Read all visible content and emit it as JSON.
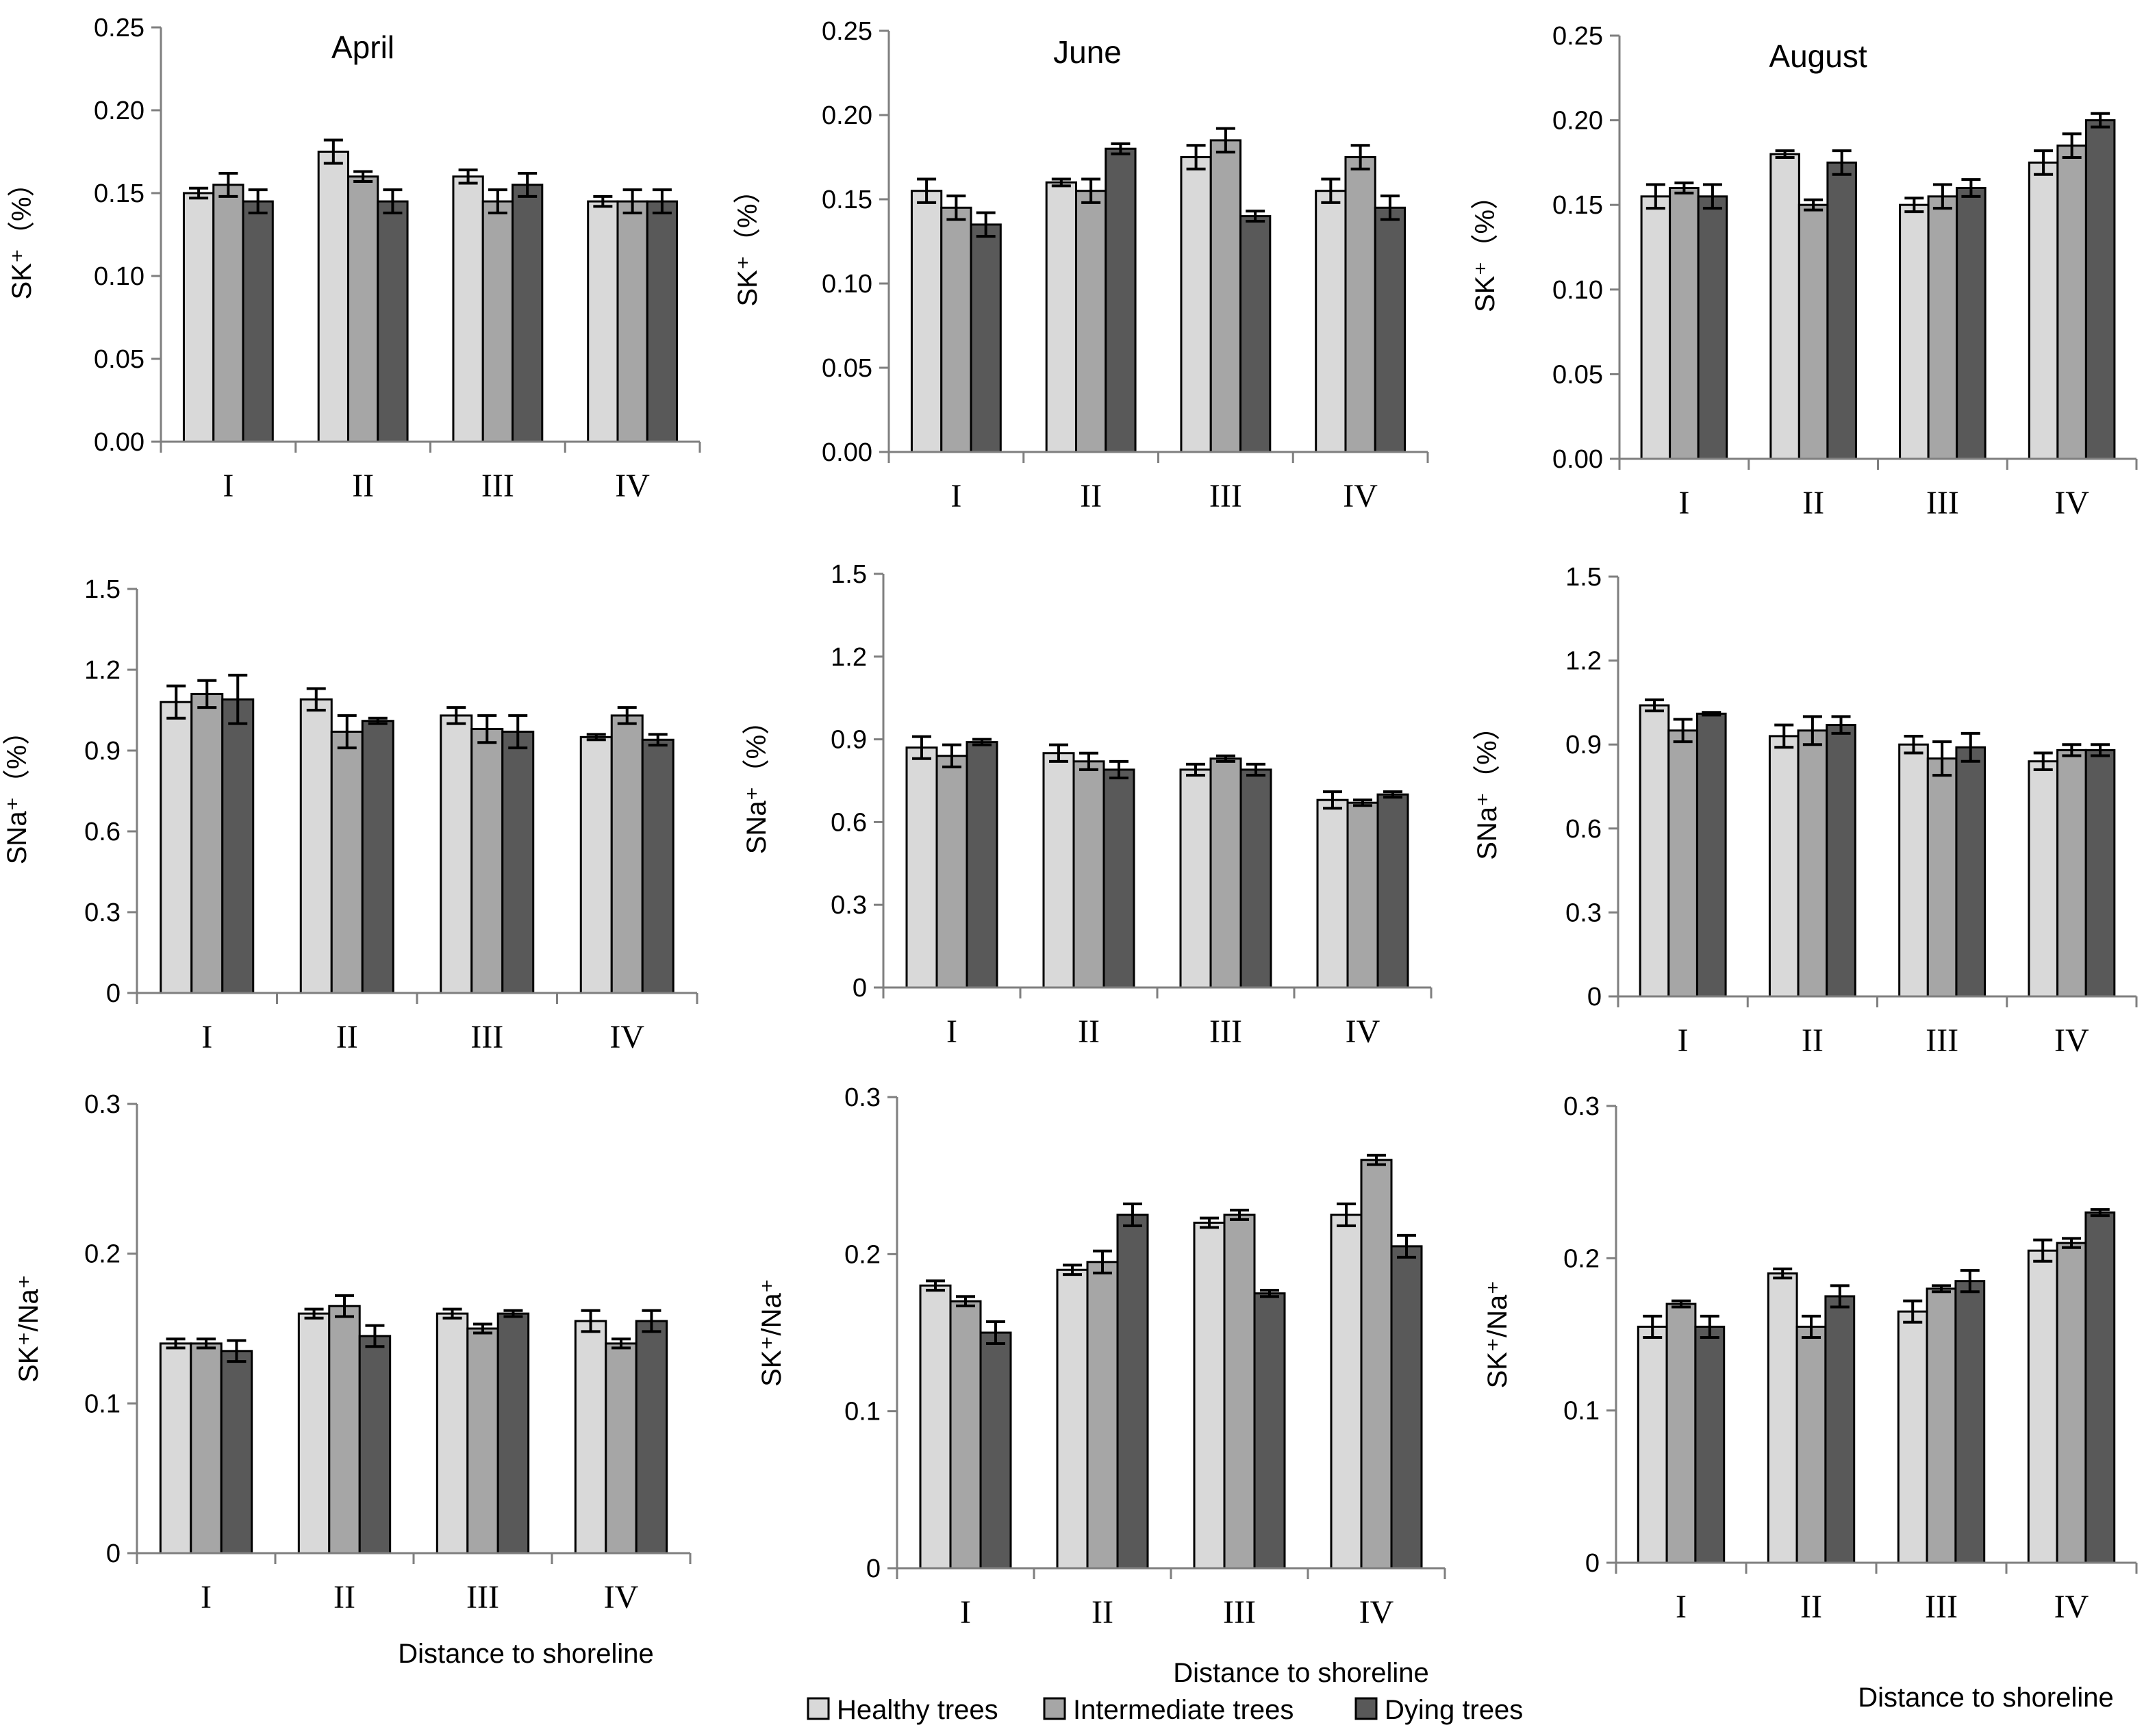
{
  "figure": {
    "x_title": "Distance to shoreline",
    "legend": [
      {
        "label": "Healthy trees",
        "color": "#d9d9d9"
      },
      {
        "label": "Intermediate trees",
        "color": "#a6a6a6"
      },
      {
        "label": "Dying trees",
        "color": "#595959"
      }
    ]
  },
  "chart_data": [
    {
      "type": "bar",
      "title": "April",
      "ylabel": "SK⁺（%）",
      "xlabel": "",
      "categories": [
        "I",
        "II",
        "III",
        "IV"
      ],
      "ylim": [
        0,
        0.25
      ],
      "ticks": [
        "0.00",
        "0.05",
        "0.10",
        "0.15",
        "0.20",
        "0.25"
      ],
      "series": [
        {
          "name": "Healthy trees",
          "values": [
            0.15,
            0.175,
            0.16,
            0.145
          ],
          "errors": [
            0.003,
            0.007,
            0.004,
            0.003
          ]
        },
        {
          "name": "Intermediate trees",
          "values": [
            0.155,
            0.16,
            0.145,
            0.145
          ],
          "errors": [
            0.007,
            0.003,
            0.007,
            0.007
          ]
        },
        {
          "name": "Dying trees",
          "values": [
            0.145,
            0.145,
            0.155,
            0.145
          ],
          "errors": [
            0.007,
            0.007,
            0.007,
            0.007
          ]
        }
      ]
    },
    {
      "type": "bar",
      "title": "June",
      "ylabel": "SK⁺（%）",
      "xlabel": "",
      "categories": [
        "I",
        "II",
        "III",
        "IV"
      ],
      "ylim": [
        0,
        0.25
      ],
      "ticks": [
        "0.00",
        "0.05",
        "0.10",
        "0.15",
        "0.20",
        "0.25"
      ],
      "series": [
        {
          "name": "Healthy trees",
          "values": [
            0.155,
            0.16,
            0.175,
            0.155
          ],
          "errors": [
            0.007,
            0.002,
            0.007,
            0.007
          ]
        },
        {
          "name": "Intermediate trees",
          "values": [
            0.145,
            0.155,
            0.185,
            0.175
          ],
          "errors": [
            0.007,
            0.007,
            0.007,
            0.007
          ]
        },
        {
          "name": "Dying trees",
          "values": [
            0.135,
            0.18,
            0.14,
            0.145
          ],
          "errors": [
            0.007,
            0.003,
            0.003,
            0.007
          ]
        }
      ]
    },
    {
      "type": "bar",
      "title": "August",
      "ylabel": "SK⁺（%）",
      "xlabel": "",
      "categories": [
        "I",
        "II",
        "III",
        "IV"
      ],
      "ylim": [
        0,
        0.25
      ],
      "ticks": [
        "0.00",
        "0.05",
        "0.10",
        "0.15",
        "0.20",
        "0.25"
      ],
      "series": [
        {
          "name": "Healthy trees",
          "values": [
            0.155,
            0.18,
            0.15,
            0.175
          ],
          "errors": [
            0.007,
            0.002,
            0.004,
            0.007
          ]
        },
        {
          "name": "Intermediate trees",
          "values": [
            0.16,
            0.15,
            0.155,
            0.185
          ],
          "errors": [
            0.003,
            0.003,
            0.007,
            0.007
          ]
        },
        {
          "name": "Dying trees",
          "values": [
            0.155,
            0.175,
            0.16,
            0.2
          ],
          "errors": [
            0.007,
            0.007,
            0.005,
            0.004
          ]
        }
      ]
    },
    {
      "type": "bar",
      "title": "",
      "ylabel": "SNa⁺（%）",
      "xlabel": "",
      "categories": [
        "I",
        "II",
        "III",
        "IV"
      ],
      "ylim": [
        0,
        1.5
      ],
      "ticks": [
        "0",
        "0.3",
        "0.6",
        "0.9",
        "1.2",
        "1.5"
      ],
      "series": [
        {
          "name": "Healthy trees",
          "values": [
            1.08,
            1.09,
            1.03,
            0.95
          ],
          "errors": [
            0.06,
            0.04,
            0.03,
            0.01
          ]
        },
        {
          "name": "Intermediate trees",
          "values": [
            1.11,
            0.97,
            0.98,
            1.03
          ],
          "errors": [
            0.05,
            0.06,
            0.05,
            0.03
          ]
        },
        {
          "name": "Dying trees",
          "values": [
            1.09,
            1.01,
            0.97,
            0.94
          ],
          "errors": [
            0.09,
            0.01,
            0.06,
            0.02
          ]
        }
      ]
    },
    {
      "type": "bar",
      "title": "",
      "ylabel": "SNa⁺（%）",
      "xlabel": "",
      "categories": [
        "I",
        "II",
        "III",
        "IV"
      ],
      "ylim": [
        0,
        1.5
      ],
      "ticks": [
        "0",
        "0.3",
        "0.6",
        "0.9",
        "1.2",
        "1.5"
      ],
      "series": [
        {
          "name": "Healthy trees",
          "values": [
            0.87,
            0.85,
            0.79,
            0.68
          ],
          "errors": [
            0.04,
            0.03,
            0.02,
            0.03
          ]
        },
        {
          "name": "Intermediate trees",
          "values": [
            0.84,
            0.82,
            0.83,
            0.67
          ],
          "errors": [
            0.04,
            0.03,
            0.01,
            0.01
          ]
        },
        {
          "name": "Dying trees",
          "values": [
            0.89,
            0.79,
            0.79,
            0.7
          ],
          "errors": [
            0.01,
            0.03,
            0.02,
            0.01
          ]
        }
      ]
    },
    {
      "type": "bar",
      "title": "",
      "ylabel": "SNa⁺（%）",
      "xlabel": "",
      "categories": [
        "I",
        "II",
        "III",
        "IV"
      ],
      "ylim": [
        0,
        1.5
      ],
      "ticks": [
        "0",
        "0.3",
        "0.6",
        "0.9",
        "1.2",
        "1.5"
      ],
      "series": [
        {
          "name": "Healthy trees",
          "values": [
            1.04,
            0.93,
            0.9,
            0.84
          ],
          "errors": [
            0.02,
            0.04,
            0.03,
            0.03
          ]
        },
        {
          "name": "Intermediate trees",
          "values": [
            0.95,
            0.95,
            0.85,
            0.88
          ],
          "errors": [
            0.04,
            0.05,
            0.06,
            0.02
          ]
        },
        {
          "name": "Dying trees",
          "values": [
            1.01,
            0.97,
            0.89,
            0.88
          ],
          "errors": [
            0.005,
            0.03,
            0.05,
            0.02
          ]
        }
      ]
    },
    {
      "type": "bar",
      "title": "",
      "ylabel": "SK⁺/Na⁺",
      "xlabel": "Distance to shoreline",
      "categories": [
        "I",
        "II",
        "III",
        "IV"
      ],
      "ylim": [
        0,
        0.3
      ],
      "ticks": [
        "0",
        "0.1",
        "0.2",
        "0.3"
      ],
      "series": [
        {
          "name": "Healthy trees",
          "values": [
            0.14,
            0.16,
            0.16,
            0.155
          ],
          "errors": [
            0.003,
            0.003,
            0.003,
            0.007
          ]
        },
        {
          "name": "Intermediate trees",
          "values": [
            0.14,
            0.165,
            0.15,
            0.14
          ],
          "errors": [
            0.003,
            0.007,
            0.003,
            0.003
          ]
        },
        {
          "name": "Dying trees",
          "values": [
            0.135,
            0.145,
            0.16,
            0.155
          ],
          "errors": [
            0.007,
            0.007,
            0.002,
            0.007
          ]
        }
      ]
    },
    {
      "type": "bar",
      "title": "",
      "ylabel": "SK⁺/Na⁺",
      "xlabel": "Distance to shoreline",
      "categories": [
        "I",
        "II",
        "III",
        "IV"
      ],
      "ylim": [
        0,
        0.3
      ],
      "ticks": [
        "0",
        "0.1",
        "0.2",
        "0.3"
      ],
      "series": [
        {
          "name": "Healthy trees",
          "values": [
            0.18,
            0.19,
            0.22,
            0.225
          ],
          "errors": [
            0.003,
            0.003,
            0.003,
            0.007
          ]
        },
        {
          "name": "Intermediate trees",
          "values": [
            0.17,
            0.195,
            0.225,
            0.26
          ],
          "errors": [
            0.003,
            0.007,
            0.003,
            0.003
          ]
        },
        {
          "name": "Dying trees",
          "values": [
            0.15,
            0.225,
            0.175,
            0.205
          ],
          "errors": [
            0.007,
            0.007,
            0.002,
            0.007
          ]
        }
      ]
    },
    {
      "type": "bar",
      "title": "",
      "ylabel": "SK⁺/Na⁺",
      "xlabel": "Distance to shoreline",
      "categories": [
        "I",
        "II",
        "III",
        "IV"
      ],
      "ylim": [
        0,
        0.3
      ],
      "ticks": [
        "0",
        "0.1",
        "0.2",
        "0.3"
      ],
      "series": [
        {
          "name": "Healthy trees",
          "values": [
            0.155,
            0.19,
            0.165,
            0.205
          ],
          "errors": [
            0.007,
            0.003,
            0.007,
            0.007
          ]
        },
        {
          "name": "Intermediate trees",
          "values": [
            0.17,
            0.155,
            0.18,
            0.21
          ],
          "errors": [
            0.002,
            0.007,
            0.002,
            0.003
          ]
        },
        {
          "name": "Dying trees",
          "values": [
            0.155,
            0.175,
            0.185,
            0.23
          ],
          "errors": [
            0.007,
            0.007,
            0.007,
            0.002
          ]
        }
      ]
    }
  ]
}
